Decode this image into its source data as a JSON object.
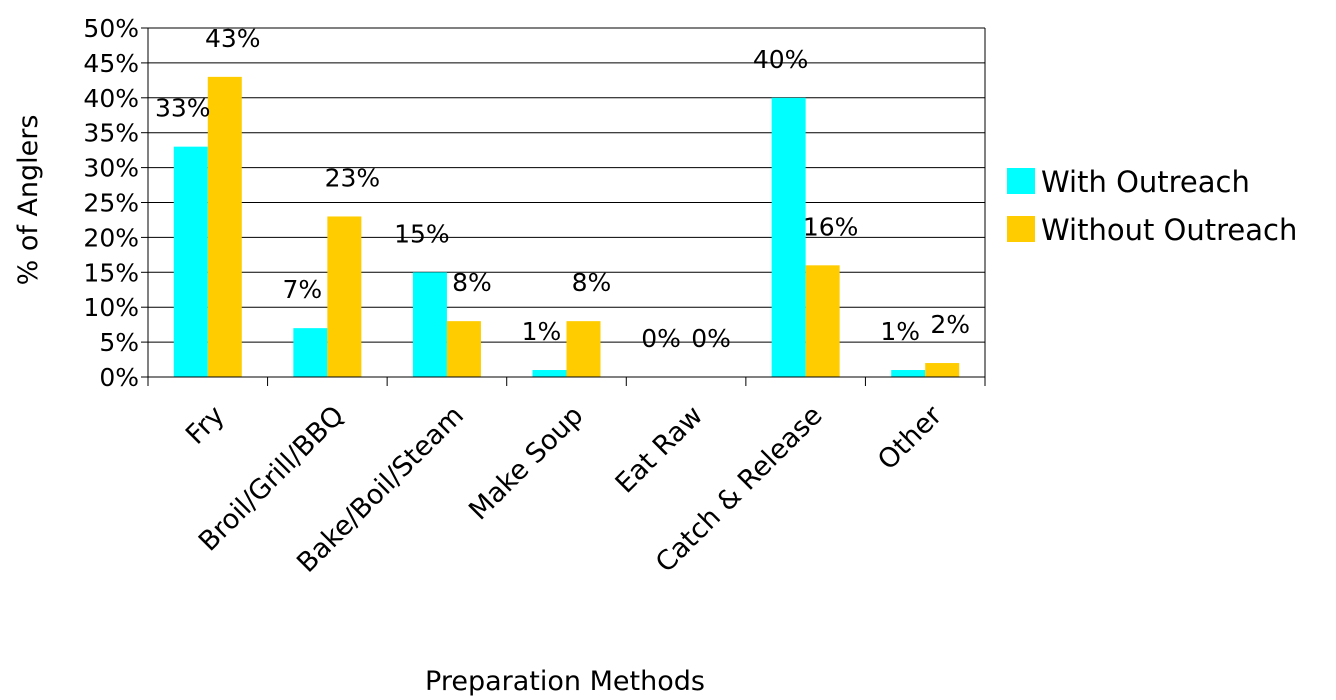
{
  "chart_data": {
    "type": "bar",
    "categories": [
      "Fry",
      "Broil/Grill/BBQ",
      "Bake/Boil/Steam",
      "Make Soup",
      "Eat Raw",
      "Catch & Release",
      "Other"
    ],
    "series": [
      {
        "name": "With Outreach",
        "color": "#00ffff",
        "values": [
          33,
          7,
          15,
          1,
          0,
          40,
          1
        ],
        "labels": [
          "33%",
          "7%",
          "15%",
          "1%",
          "0%",
          "40%",
          "1%"
        ]
      },
      {
        "name": "Without Outreach",
        "color": "#ffcc00",
        "values": [
          43,
          23,
          8,
          8,
          0,
          16,
          2
        ],
        "labels": [
          "43%",
          "23%",
          "8%",
          "8%",
          "0%",
          "16%",
          "2%"
        ]
      }
    ],
    "xlabel": "Preparation Methods",
    "ylabel": "% of Anglers",
    "ylim": [
      0,
      50
    ],
    "yticks": [
      "0%",
      "5%",
      "10%",
      "15%",
      "20%",
      "25%",
      "30%",
      "35%",
      "40%",
      "45%",
      "50%"
    ],
    "grid": true,
    "legend_position": "right"
  }
}
